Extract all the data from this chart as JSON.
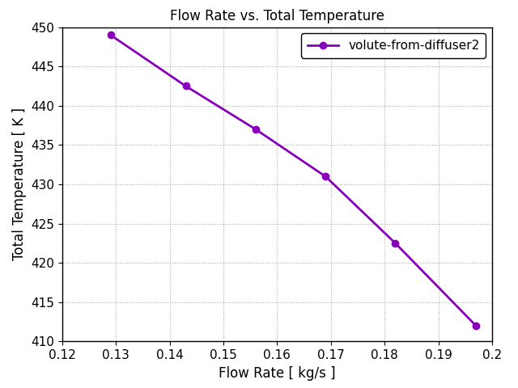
{
  "x": [
    0.129,
    0.143,
    0.156,
    0.169,
    0.182,
    0.197
  ],
  "y": [
    449.0,
    442.5,
    437.0,
    431.0,
    422.5,
    412.0
  ],
  "line_color": "#8800bb",
  "marker": "o",
  "marker_size": 6,
  "marker_facecolor": "#8800bb",
  "line_width": 2,
  "title": "Flow Rate vs. Total Temperature",
  "xlabel": "Flow Rate [ kg/s ]",
  "ylabel": "Total Temperature [ K ]",
  "xlim": [
    0.12,
    0.2
  ],
  "ylim": [
    410,
    450
  ],
  "xticks": [
    0.12,
    0.13,
    0.14,
    0.15,
    0.16,
    0.17,
    0.18,
    0.19,
    0.2
  ],
  "yticks": [
    410,
    415,
    420,
    425,
    430,
    435,
    440,
    445,
    450
  ],
  "legend_label": "volute-from-diffuser2",
  "grid": true,
  "title_fontsize": 12,
  "label_fontsize": 12,
  "tick_fontsize": 11,
  "legend_fontsize": 11,
  "background_color": "#ffffff",
  "figsize": [
    6.4,
    4.8
  ],
  "dpi": 100
}
